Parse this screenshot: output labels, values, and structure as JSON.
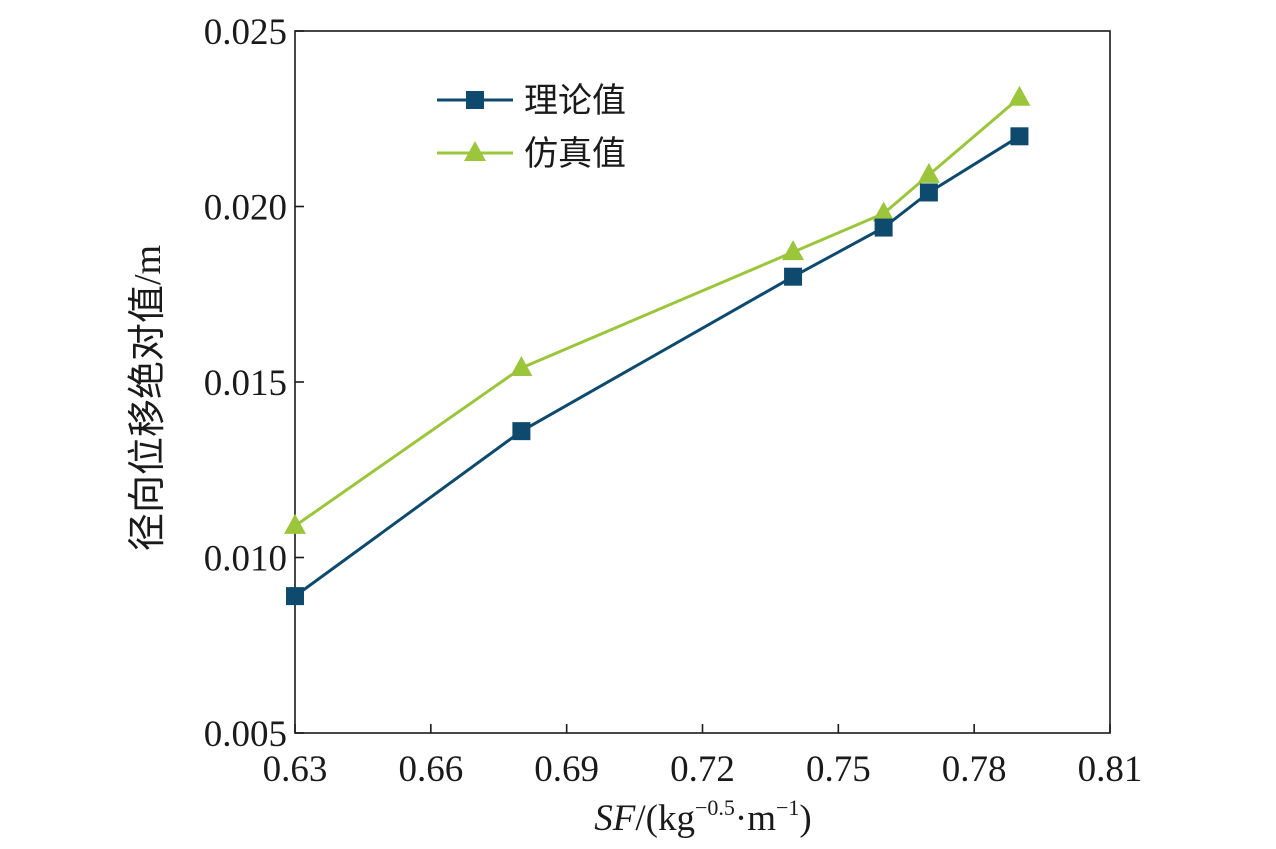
{
  "chart_data": {
    "type": "line",
    "x": [
      0.63,
      0.68,
      0.74,
      0.76,
      0.77,
      0.79
    ],
    "series": [
      {
        "name": "理论值",
        "values": [
          0.0089,
          0.0136,
          0.018,
          0.0194,
          0.0204,
          0.022
        ],
        "color": "#0d4a6e",
        "marker": "square"
      },
      {
        "name": "仿真值",
        "values": [
          0.0109,
          0.0154,
          0.0187,
          0.0198,
          0.0209,
          0.0231
        ],
        "color": "#9bc63b",
        "marker": "triangle"
      }
    ],
    "xlim": [
      0.63,
      0.81
    ],
    "ylim": [
      0.005,
      0.025
    ],
    "x_ticks": [
      "0.63",
      "0.66",
      "0.69",
      "0.72",
      "0.75",
      "0.78",
      "0.81"
    ],
    "y_ticks": [
      "0.005",
      "0.010",
      "0.015",
      "0.020",
      "0.025"
    ],
    "xlabel": {
      "var": "SF",
      "open": "/(kg",
      "exp1": "−0.5",
      "mid": "·m",
      "exp2": "−1",
      "close": ")"
    },
    "ylabel": "径向位移绝对值/m",
    "legend_position": "top-left",
    "grid": false
  }
}
